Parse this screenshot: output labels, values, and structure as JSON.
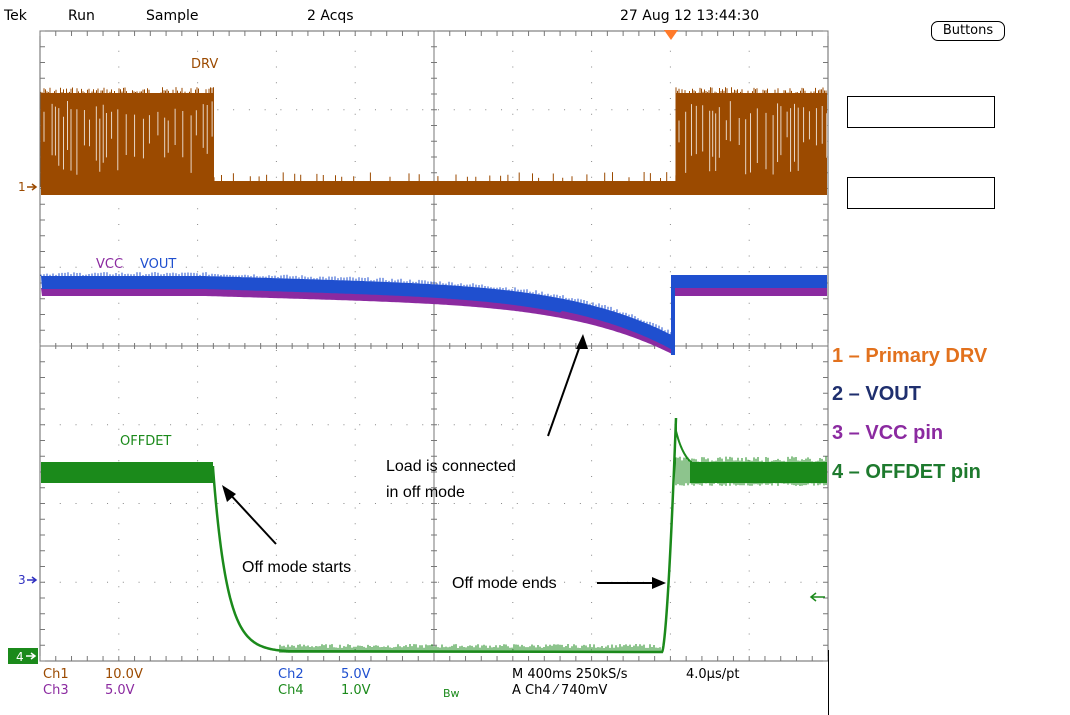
{
  "status_bar": {
    "brand": "Tek",
    "mode": "Run",
    "acq_mode": "Sample",
    "acqs": "2 Acqs",
    "datetime": "27 Aug 12 13:44:30"
  },
  "buttons_label": "Buttons",
  "traces": {
    "drv_label": "DRV",
    "vcc_label": "VCC",
    "vout_label": "VOUT",
    "offdet_label": "OFFDET",
    "colors": {
      "drv": "#9b4a00",
      "vcc": "#8b2aa0",
      "vout": "#1f4fcf",
      "offdet": "#1b8a1b"
    }
  },
  "channel_markers": {
    "ch1": "1",
    "ch3": "3",
    "ch4": "4"
  },
  "annotations": {
    "load_line1": "Load is connected",
    "load_line2": "in off mode",
    "off_start": "Off mode starts",
    "off_end": "Off mode ends"
  },
  "legend": [
    {
      "text": "1 – Primary DRV",
      "color": "#e2711d"
    },
    {
      "text": "2 – VOUT",
      "color": "#1f2f6e"
    },
    {
      "text": "3 – VCC pin",
      "color": "#8b2aa0"
    },
    {
      "text": "4 – OFFDET pin",
      "color": "#1e7a2e"
    }
  ],
  "bottom": {
    "ch1": "Ch1",
    "ch1_val": "10.0V",
    "ch3": "Ch3",
    "ch3_val": "5.0V",
    "ch2": "Ch2",
    "ch2_val": "5.0V",
    "ch4": "Ch4",
    "ch4_val": "1.0V",
    "bw": "Bw",
    "timebase": "M 400ms 250kS/s",
    "pt": "4.0µs/pt",
    "trigger": "A  Ch4  ⁄  740mV"
  }
}
